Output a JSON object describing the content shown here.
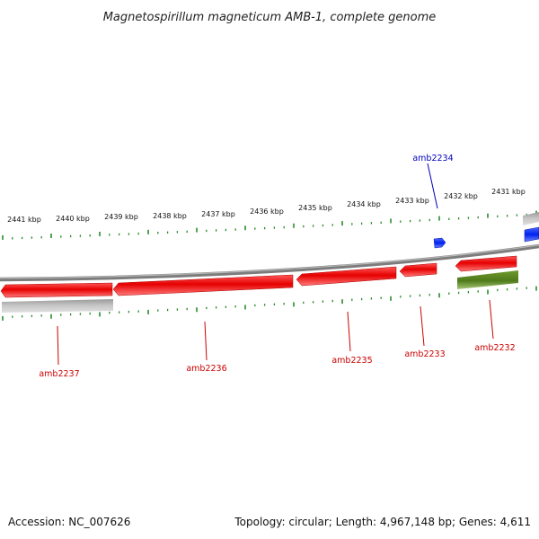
{
  "title": "Magnetospirillum magneticum AMB-1, complete genome",
  "footer": {
    "accession": "Accession: NC_007626",
    "topology": "Topology: circular; Length: 4,967,148 bp; Genes: 4,611"
  },
  "colors": {
    "forward_gene": "#ee1111",
    "reverse_gene": "#ee1111",
    "forward_track_other": "#1133ee",
    "pseudo_gene": "#5a8a1e",
    "gray_feature": "#b4b4b4",
    "backbone": "#8a8a8a",
    "tick": "#2a8a2a",
    "label_red": "#cc0000",
    "label_blue": "#0000bb"
  },
  "ruler": {
    "labels": [
      "2441 kbp",
      "2440 kbp",
      "2439 kbp",
      "2438 kbp",
      "2437 kbp",
      "2436 kbp",
      "2435 kbp",
      "2434 kbp",
      "2433 kbp",
      "2432 kbp",
      "2431 kbp"
    ]
  },
  "genes": [
    {
      "id": "amb2237",
      "label": "amb2237",
      "color": "red"
    },
    {
      "id": "amb2236",
      "label": "amb2236",
      "color": "red"
    },
    {
      "id": "amb2235",
      "label": "amb2235",
      "color": "red"
    },
    {
      "id": "amb2233",
      "label": "amb2233",
      "color": "red"
    },
    {
      "id": "amb2232",
      "label": "amb2232",
      "color": "red"
    },
    {
      "id": "amb2234",
      "label": "amb2234",
      "color": "blue"
    }
  ]
}
